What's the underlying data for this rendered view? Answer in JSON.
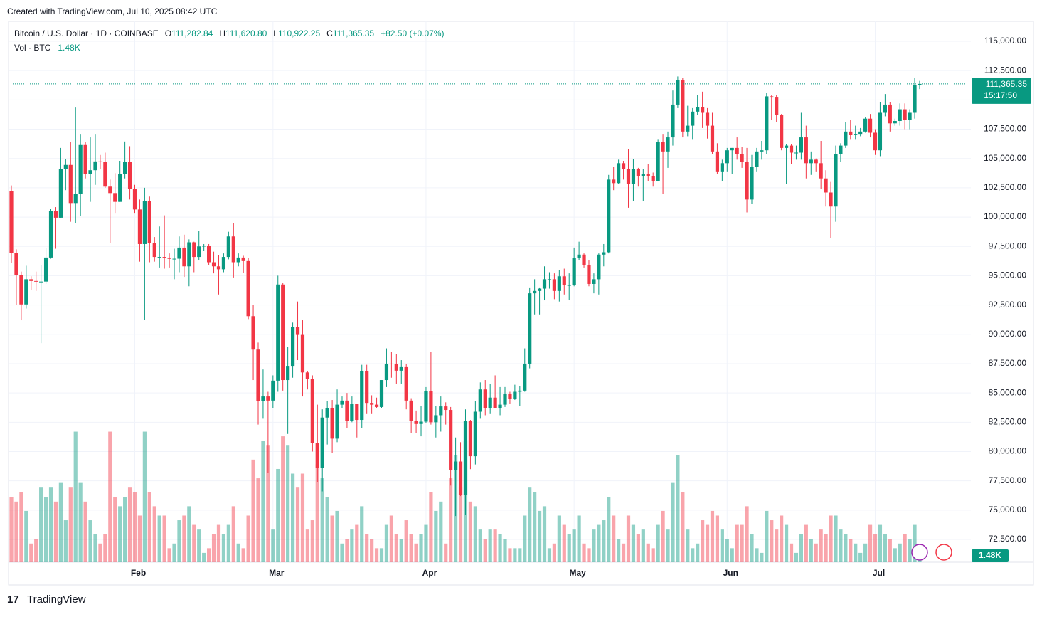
{
  "header": {
    "created": "Created with TradingView.com, Jul 10, 2025 08:42 UTC"
  },
  "footer": {
    "brand": "TradingView"
  },
  "chart_data": {
    "type": "candlestick",
    "legend": {
      "symbol": "Bitcoin / U.S. Dollar · 1D · COINBASE",
      "o_tag": "O",
      "o": "111,282.84",
      "h_tag": "H",
      "h": "111,620.80",
      "l_tag": "L",
      "l": "110,922.25",
      "c_tag": "C",
      "c": "111,365.35",
      "change": "+82.50 (+0.07%)",
      "vol_name": "Vol · BTC",
      "vol": "1.48K"
    },
    "last_price_label": "111,365.35",
    "countdown": "15:17:50",
    "last_volume_label": "1.48K",
    "up_color": "#089981",
    "down_color": "#f23645",
    "ylim": [
      70560,
      116700
    ],
    "yticks": [
      {
        "value": 72500,
        "label": "72,500.00"
      },
      {
        "value": 75000,
        "label": "75,000.00"
      },
      {
        "value": 77500,
        "label": "77,500.00"
      },
      {
        "value": 80000,
        "label": "80,000.00"
      },
      {
        "value": 82500,
        "label": "82,500.00"
      },
      {
        "value": 85000,
        "label": "85,000.00"
      },
      {
        "value": 87500,
        "label": "87,500.00"
      },
      {
        "value": 90000,
        "label": "90,000.00"
      },
      {
        "value": 92500,
        "label": "92,500.00"
      },
      {
        "value": 95000,
        "label": "95,000.00"
      },
      {
        "value": 97500,
        "label": "97,500.00"
      },
      {
        "value": 100000,
        "label": "100,000.00"
      },
      {
        "value": 102500,
        "label": "102,500.00"
      },
      {
        "value": 105000,
        "label": "105,000.00"
      },
      {
        "value": 107500,
        "label": "107,500.00"
      },
      {
        "value": 110000,
        "label": "110,000.00"
      },
      {
        "value": 112500,
        "label": "112,500.00"
      },
      {
        "value": 115000,
        "label": "115,000.00"
      }
    ],
    "xticks": [
      {
        "value": 25,
        "label": "Feb"
      },
      {
        "value": 53,
        "label": "Mar"
      },
      {
        "value": 84,
        "label": "Apr"
      },
      {
        "value": 114,
        "label": "May"
      },
      {
        "value": 145,
        "label": "Jun"
      },
      {
        "value": 175,
        "label": "Jul"
      }
    ],
    "grid": true,
    "vlim": [
      0,
      29
    ],
    "candles": [
      [
        102250,
        102700,
        96100,
        96950
      ],
      [
        96950,
        97250,
        92500,
        95050
      ],
      [
        95050,
        95350,
        91200,
        92550
      ],
      [
        92550,
        95850,
        92200,
        94700
      ],
      [
        94700,
        94950,
        93800,
        94550
      ],
      [
        94550,
        95350,
        93700,
        94500
      ],
      [
        94500,
        95900,
        89250,
        94500
      ],
      [
        94500,
        97350,
        94300,
        96550
      ],
      [
        96550,
        100700,
        96450,
        100500
      ],
      [
        100500,
        100850,
        97300,
        99950
      ],
      [
        99950,
        105900,
        99950,
        104100
      ],
      [
        104100,
        104950,
        102300,
        104450
      ],
      [
        104450,
        106400,
        99600,
        101200
      ],
      [
        101200,
        109350,
        99500,
        102000
      ],
      [
        102000,
        107100,
        100100,
        106150
      ],
      [
        106150,
        106400,
        103300,
        103700
      ],
      [
        103700,
        106800,
        101300,
        104000
      ],
      [
        104000,
        107100,
        102750,
        104750
      ],
      [
        104750,
        105300,
        104100,
        104700
      ],
      [
        104700,
        105500,
        102500,
        102600
      ],
      [
        102600,
        103200,
        97800,
        102050
      ],
      [
        102050,
        103750,
        100300,
        101300
      ],
      [
        101300,
        104800,
        101300,
        103700
      ],
      [
        103700,
        106450,
        103300,
        104700
      ],
      [
        104700,
        106050,
        101500,
        102400
      ],
      [
        102400,
        102750,
        100300,
        100650
      ],
      [
        100650,
        101500,
        96200,
        97700
      ],
      [
        97700,
        102500,
        91200,
        101400
      ],
      [
        101400,
        101750,
        96150,
        97800
      ],
      [
        97800,
        98300,
        96200,
        96600
      ],
      [
        96600,
        99200,
        95700,
        96600
      ],
      [
        96600,
        100150,
        95600,
        96500
      ],
      [
        96500,
        96900,
        95700,
        96450
      ],
      [
        96450,
        97300,
        94700,
        96450
      ],
      [
        96450,
        98350,
        95300,
        97400
      ],
      [
        97400,
        98500,
        94900,
        95800
      ],
      [
        95800,
        98100,
        94100,
        97850
      ],
      [
        97850,
        97900,
        95300,
        96600
      ],
      [
        96600,
        98800,
        96300,
        97500
      ],
      [
        97500,
        97700,
        97150,
        97550
      ],
      [
        97550,
        97700,
        95900,
        96150
      ],
      [
        96150,
        97050,
        95200,
        95800
      ],
      [
        95800,
        96750,
        93400,
        95550
      ],
      [
        95550,
        96900,
        95300,
        96600
      ],
      [
        96600,
        98750,
        96400,
        98350
      ],
      [
        98350,
        99500,
        94850,
        96150
      ],
      [
        96150,
        96900,
        95800,
        96550
      ],
      [
        96550,
        96700,
        95250,
        96250
      ],
      [
        96250,
        96500,
        91300,
        91550
      ],
      [
        91550,
        92500,
        86100,
        88700
      ],
      [
        88700,
        89300,
        82300,
        84300
      ],
      [
        84300,
        87000,
        82800,
        84700
      ],
      [
        84700,
        85100,
        78200,
        84350
      ],
      [
        84350,
        86500,
        83700,
        86050
      ],
      [
        86050,
        95000,
        85100,
        94250
      ],
      [
        94250,
        94400,
        85200,
        86100
      ],
      [
        86100,
        88900,
        81500,
        87250
      ],
      [
        87250,
        91000,
        86300,
        90600
      ],
      [
        90600,
        92800,
        87800,
        89950
      ],
      [
        89950,
        91200,
        84700,
        86750
      ],
      [
        86750,
        86850,
        85300,
        86200
      ],
      [
        86200,
        86500,
        80000,
        80700
      ],
      [
        80700,
        84000,
        77400,
        78600
      ],
      [
        78600,
        83600,
        76600,
        82900
      ],
      [
        82900,
        84300,
        80600,
        83700
      ],
      [
        83700,
        84400,
        79900,
        81100
      ],
      [
        81100,
        85300,
        80800,
        84000
      ],
      [
        84000,
        84700,
        83700,
        84350
      ],
      [
        84350,
        85000,
        82000,
        82600
      ],
      [
        82600,
        84700,
        82500,
        84050
      ],
      [
        84050,
        84100,
        81200,
        82700
      ],
      [
        82700,
        87400,
        82000,
        86850
      ],
      [
        86850,
        87400,
        83200,
        84150
      ],
      [
        84150,
        84800,
        83200,
        84000
      ],
      [
        84000,
        84600,
        83700,
        83800
      ],
      [
        83800,
        86100,
        83700,
        86100
      ],
      [
        86100,
        88800,
        85500,
        87500
      ],
      [
        87500,
        88500,
        86300,
        87450
      ],
      [
        87450,
        88300,
        85800,
        86900
      ],
      [
        86900,
        87800,
        85800,
        87200
      ],
      [
        87200,
        87500,
        83600,
        84350
      ],
      [
        84350,
        84550,
        81600,
        82600
      ],
      [
        82600,
        83500,
        81600,
        82350
      ],
      [
        82350,
        83900,
        81300,
        82550
      ],
      [
        82550,
        85500,
        82400,
        85150
      ],
      [
        85150,
        88500,
        82300,
        82500
      ],
      [
        82500,
        83900,
        81200,
        83100
      ],
      [
        83100,
        84700,
        81700,
        83850
      ],
      [
        83850,
        84200,
        82300,
        83550
      ],
      [
        83550,
        83800,
        77100,
        78400
      ],
      [
        78400,
        81200,
        74500,
        79150
      ],
      [
        79150,
        80800,
        76200,
        76300
      ],
      [
        76300,
        83600,
        74600,
        82600
      ],
      [
        82600,
        82700,
        78500,
        79600
      ],
      [
        79600,
        84300,
        78900,
        83400
      ],
      [
        83400,
        85900,
        82800,
        85300
      ],
      [
        85300,
        86100,
        83100,
        83700
      ],
      [
        83700,
        85800,
        83200,
        84600
      ],
      [
        84600,
        86500,
        83800,
        83700
      ],
      [
        83700,
        85500,
        83100,
        84000
      ],
      [
        84000,
        85500,
        83800,
        84900
      ],
      [
        84900,
        85100,
        84100,
        84500
      ],
      [
        84500,
        85700,
        84400,
        85100
      ],
      [
        85100,
        85600,
        83900,
        85200
      ],
      [
        85200,
        88800,
        85100,
        87500
      ],
      [
        87500,
        94000,
        87100,
        93500
      ],
      [
        93500,
        94700,
        91700,
        93700
      ],
      [
        93700,
        94000,
        91700,
        93900
      ],
      [
        93900,
        95800,
        92900,
        94700
      ],
      [
        94700,
        95300,
        93900,
        94700
      ],
      [
        94700,
        95200,
        93000,
        93700
      ],
      [
        93700,
        95500,
        92800,
        94950
      ],
      [
        94950,
        95600,
        93400,
        94200
      ],
      [
        94200,
        95200,
        92900,
        94200
      ],
      [
        94200,
        97400,
        94100,
        96500
      ],
      [
        96500,
        97900,
        96300,
        96800
      ],
      [
        96800,
        96900,
        95700,
        95900
      ],
      [
        95900,
        96300,
        94100,
        94300
      ],
      [
        94300,
        95200,
        93500,
        94700
      ],
      [
        94700,
        96900,
        93400,
        96800
      ],
      [
        96800,
        97700,
        95800,
        97000
      ],
      [
        97000,
        103600,
        96900,
        103200
      ],
      [
        103200,
        104300,
        102300,
        102900
      ],
      [
        102900,
        104900,
        102800,
        104600
      ],
      [
        104600,
        104800,
        103200,
        104100
      ],
      [
        104100,
        105800,
        100800,
        102800
      ],
      [
        102800,
        104950,
        101400,
        104100
      ],
      [
        104100,
        104200,
        102600,
        103500
      ],
      [
        103500,
        104100,
        101400,
        103700
      ],
      [
        103700,
        104500,
        103100,
        103500
      ],
      [
        103500,
        103800,
        102600,
        103100
      ],
      [
        103100,
        106600,
        103100,
        106400
      ],
      [
        106400,
        107100,
        102000,
        105600
      ],
      [
        105600,
        107300,
        104200,
        106800
      ],
      [
        106800,
        110800,
        106100,
        109600
      ],
      [
        109600,
        112000,
        109300,
        111700
      ],
      [
        111700,
        111900,
        106800,
        107300
      ],
      [
        107300,
        109500,
        106900,
        107800
      ],
      [
        107800,
        109300,
        106600,
        109000
      ],
      [
        109000,
        110400,
        108700,
        109400
      ],
      [
        109400,
        110700,
        107600,
        108900
      ],
      [
        108900,
        109300,
        106700,
        107800
      ],
      [
        107800,
        108900,
        105400,
        105600
      ],
      [
        105600,
        106300,
        103700,
        103900
      ],
      [
        103900,
        104900,
        103100,
        104600
      ],
      [
        104600,
        105900,
        103900,
        105700
      ],
      [
        105700,
        105900,
        103700,
        105900
      ],
      [
        105900,
        106800,
        104900,
        105400
      ],
      [
        105400,
        106000,
        104200,
        104700
      ],
      [
        104700,
        105900,
        100400,
        101500
      ],
      [
        101500,
        105300,
        101100,
        104300
      ],
      [
        104300,
        105900,
        103900,
        105600
      ],
      [
        105600,
        106500,
        104900,
        105700
      ],
      [
        105700,
        110600,
        105400,
        110300
      ],
      [
        110300,
        110400,
        108300,
        110200
      ],
      [
        110200,
        110400,
        108100,
        108700
      ],
      [
        108700,
        108800,
        105700,
        105900
      ],
      [
        105900,
        106200,
        102800,
        106100
      ],
      [
        106100,
        106200,
        104500,
        105500
      ],
      [
        105500,
        106100,
        104900,
        105500
      ],
      [
        105500,
        108900,
        104900,
        106800
      ],
      [
        106800,
        107800,
        103300,
        104600
      ],
      [
        104600,
        105600,
        103600,
        104900
      ],
      [
        104900,
        105000,
        103900,
        104600
      ],
      [
        104600,
        106500,
        102400,
        103300
      ],
      [
        103300,
        104000,
        100900,
        102100
      ],
      [
        102100,
        103000,
        98200,
        100900
      ],
      [
        100900,
        106100,
        99600,
        105400
      ],
      [
        105400,
        106300,
        104700,
        106100
      ],
      [
        106100,
        108100,
        105900,
        107300
      ],
      [
        107300,
        108300,
        106600,
        107000
      ],
      [
        107000,
        107800,
        106600,
        107100
      ],
      [
        107100,
        107600,
        106900,
        107300
      ],
      [
        107300,
        108500,
        107200,
        108400
      ],
      [
        108400,
        108800,
        106800,
        107200
      ],
      [
        107200,
        107500,
        105300,
        105700
      ],
      [
        105700,
        109800,
        105200,
        108900
      ],
      [
        108900,
        110500,
        108600,
        109600
      ],
      [
        109600,
        109800,
        107300,
        108000
      ],
      [
        108000,
        108400,
        107800,
        108200
      ],
      [
        108200,
        109700,
        107800,
        109200
      ],
      [
        109200,
        109700,
        107500,
        108300
      ],
      [
        108300,
        109200,
        107500,
        108900
      ],
      [
        108900,
        111900,
        108400,
        111283
      ],
      [
        111282.84,
        111620.8,
        110922.25,
        111365.35
      ]
    ],
    "volume": [
      14,
      13,
      15,
      11,
      4,
      5,
      16,
      14,
      16,
      13,
      17,
      9,
      16,
      28,
      17,
      13,
      9,
      6,
      4,
      6,
      28,
      14,
      12,
      14,
      16,
      15,
      10,
      28,
      15,
      12,
      10,
      10,
      3,
      4,
      9,
      10,
      12,
      8,
      7,
      2,
      3,
      6,
      8,
      6,
      8,
      12,
      4,
      3,
      10,
      22,
      18,
      26,
      25,
      7,
      20,
      27,
      25,
      19,
      16,
      19,
      7,
      9,
      21,
      18,
      14,
      10,
      11,
      4,
      5,
      7,
      8,
      12,
      6,
      5,
      3,
      3,
      8,
      10,
      6,
      5,
      9,
      6,
      4,
      6,
      8,
      15,
      11,
      13,
      4,
      18,
      23,
      16,
      26,
      13,
      12,
      7,
      5,
      7,
      7,
      6,
      5,
      3,
      3,
      3,
      10,
      16,
      15,
      11,
      12,
      3,
      4,
      10,
      8,
      6,
      7,
      10,
      4,
      3,
      7,
      8,
      9,
      14,
      10,
      5,
      4,
      10,
      8,
      6,
      7,
      4,
      3,
      8,
      11,
      7,
      17,
      23,
      15,
      7,
      3,
      4,
      9,
      8,
      11,
      10,
      7,
      5,
      3,
      8,
      8,
      12,
      6,
      3,
      2,
      11,
      9,
      7,
      10,
      8,
      4,
      2,
      6,
      8,
      5,
      4,
      7,
      6,
      10,
      10,
      7,
      6,
      5,
      4,
      2,
      4,
      8,
      6,
      8,
      6,
      5,
      3,
      4,
      6,
      5,
      8,
      1.48
    ]
  }
}
